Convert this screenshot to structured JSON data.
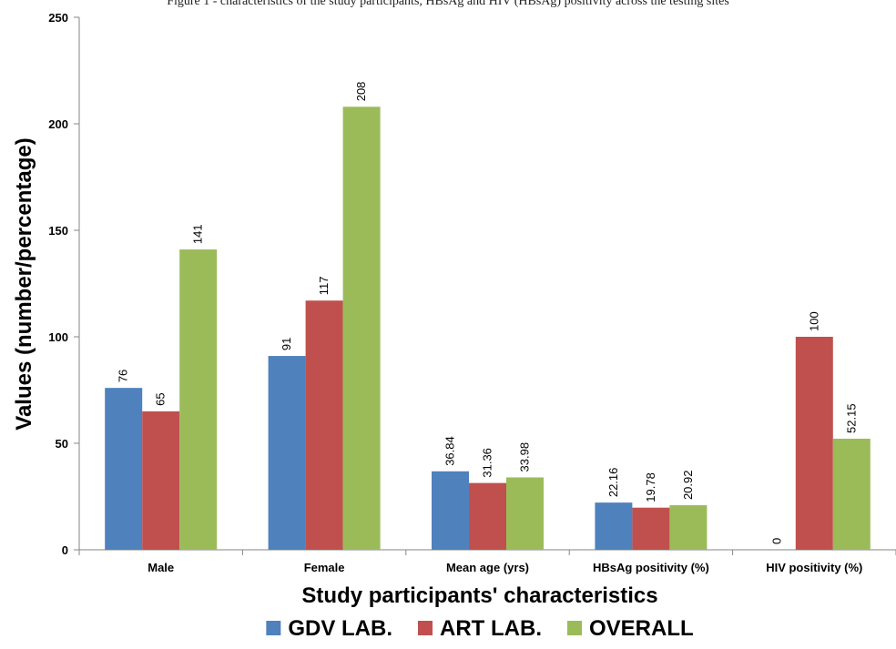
{
  "header": {
    "caption": "Figure 1 - characteristics of the study participants, HBsAg and HIV (HBsAg) positivity across the testing sites"
  },
  "colors": {
    "gdv": "#4f81bd",
    "art": "#c0504d",
    "overall": "#9bbb59",
    "axis": "#868686"
  },
  "chart_data": {
    "type": "bar",
    "title": "",
    "xlabel": "Study participants' characteristics",
    "ylabel": "Values (number/percentage)",
    "ylim": [
      0,
      250
    ],
    "yticks": [
      0,
      50,
      100,
      150,
      200,
      250
    ],
    "grid": false,
    "legend_position": "bottom",
    "categories": [
      "Male",
      "Female",
      "Mean age (yrs)",
      "HBsAg positivity (%)",
      "HIV positivity (%)"
    ],
    "series": [
      {
        "name": "GDV LAB.",
        "values": [
          76,
          91,
          36.84,
          22.16,
          0
        ],
        "labels": [
          "76",
          "91",
          "36.84",
          "22.16",
          "0"
        ]
      },
      {
        "name": "ART LAB.",
        "values": [
          65,
          117,
          31.36,
          19.78,
          100
        ],
        "labels": [
          "65",
          "117",
          "31.36",
          "19.78",
          "100"
        ]
      },
      {
        "name": "OVERALL",
        "values": [
          141,
          208,
          33.98,
          20.92,
          52.15
        ],
        "labels": [
          "141",
          "208",
          "33.98",
          "20.92",
          "52.15"
        ]
      }
    ]
  }
}
